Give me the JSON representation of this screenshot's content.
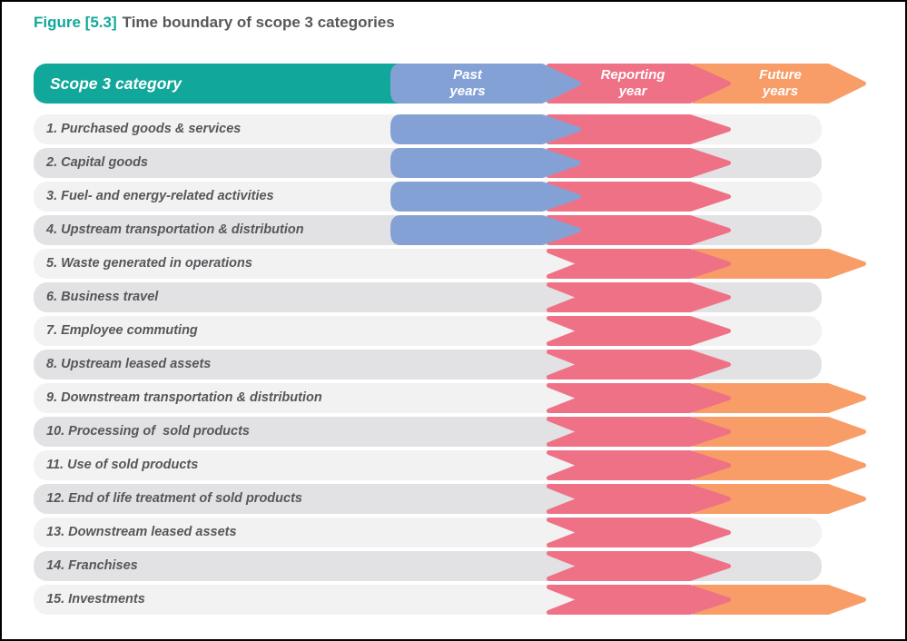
{
  "title": {
    "figure_label": "Figure [5.3]",
    "figure_caption": "Time boundary of scope 3 categories"
  },
  "header": {
    "category_label": "Scope 3 category",
    "columns": [
      {
        "id": "past",
        "line1": "Past",
        "line2": "years"
      },
      {
        "id": "reporting",
        "line1": "Reporting",
        "line2": "year"
      },
      {
        "id": "future",
        "line1": "Future",
        "line2": "years"
      }
    ]
  },
  "rows": [
    {
      "label": "1. Purchased goods & services",
      "past": true,
      "reporting": true,
      "future": false
    },
    {
      "label": "2. Capital goods",
      "past": true,
      "reporting": true,
      "future": false
    },
    {
      "label": "3. Fuel- and energy-related activities",
      "past": true,
      "reporting": true,
      "future": false
    },
    {
      "label": "4. Upstream transportation & distribution",
      "past": true,
      "reporting": true,
      "future": false
    },
    {
      "label": "5. Waste generated in operations",
      "past": false,
      "reporting": true,
      "future": true
    },
    {
      "label": "6. Business travel",
      "past": false,
      "reporting": true,
      "future": false
    },
    {
      "label": "7. Employee commuting",
      "past": false,
      "reporting": true,
      "future": false
    },
    {
      "label": "8. Upstream leased assets",
      "past": false,
      "reporting": true,
      "future": false
    },
    {
      "label": "9. Downstream transportation & distribution",
      "past": false,
      "reporting": true,
      "future": true
    },
    {
      "label": "10. Processing of  sold products",
      "past": false,
      "reporting": true,
      "future": true
    },
    {
      "label": "11. Use of sold products",
      "past": false,
      "reporting": true,
      "future": true
    },
    {
      "label": "12. End of life treatment of sold products",
      "past": false,
      "reporting": true,
      "future": true
    },
    {
      "label": "13. Downstream leased assets",
      "past": false,
      "reporting": true,
      "future": false
    },
    {
      "label": "14. Franchises",
      "past": false,
      "reporting": true,
      "future": false
    },
    {
      "label": "15. Investments",
      "past": false,
      "reporting": true,
      "future": true
    }
  ],
  "colors": {
    "teal": "#12a79b",
    "past_blue": "#84a1d6",
    "reporting_pink": "#ef7186",
    "future_orange": "#f89d67",
    "row_light": "#f2f2f3",
    "row_dark": "#e2e2e4",
    "label_gray": "#57575b",
    "title_gray": "#57585b"
  }
}
